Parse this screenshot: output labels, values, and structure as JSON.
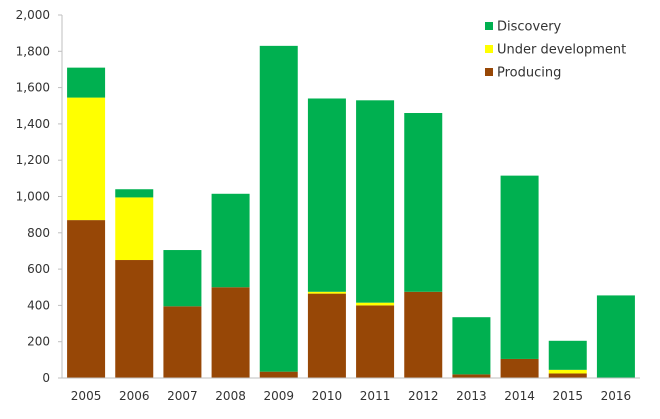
{
  "chart_data": {
    "type": "bar",
    "stacked": true,
    "title": "",
    "xlabel": "",
    "ylabel": "",
    "ylim": [
      0,
      2000
    ],
    "yticks": [
      0,
      200,
      400,
      600,
      800,
      1000,
      1200,
      1400,
      1600,
      1800,
      2000
    ],
    "ytick_labels": [
      "0",
      "200",
      "400",
      "600",
      "800",
      "1,000",
      "1,200",
      "1,400",
      "1,600",
      "1,800",
      "2,000"
    ],
    "grid": false,
    "legend_position": "top-right",
    "categories": [
      "2005",
      "2006",
      "2007",
      "2008",
      "2009",
      "2010",
      "2011",
      "2012",
      "2013",
      "2014",
      "2015",
      "2016"
    ],
    "series": [
      {
        "name": "Producing",
        "color": "#974706",
        "values": [
          870,
          650,
          395,
          500,
          35,
          465,
          400,
          475,
          20,
          105,
          25,
          0
        ]
      },
      {
        "name": "Under development",
        "color": "#ffff00",
        "values": [
          675,
          345,
          0,
          0,
          0,
          10,
          15,
          0,
          0,
          0,
          20,
          0
        ]
      },
      {
        "name": "Discovery",
        "color": "#00b050",
        "values": [
          165,
          45,
          310,
          515,
          1795,
          1065,
          1115,
          985,
          315,
          1010,
          160,
          455
        ]
      }
    ],
    "legend_order": [
      "Discovery",
      "Under development",
      "Producing"
    ]
  }
}
